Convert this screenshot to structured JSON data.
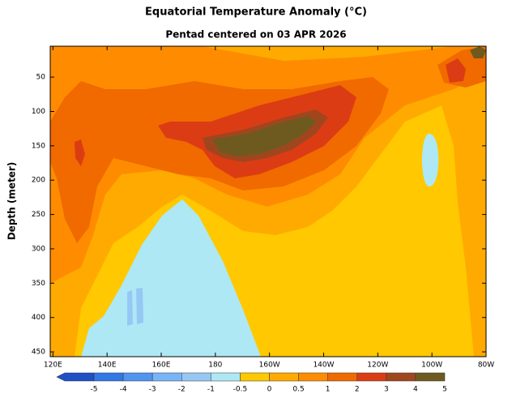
{
  "chart_data": {
    "type": "contour",
    "title": "Equatorial Temperature Anomaly (°C)",
    "subtitle": "Pentad centered on 03 APR 2026",
    "y_label": "Depth (meter)",
    "xlim": [
      119,
      280
    ],
    "xticks": [
      {
        "value": 120,
        "label": "120E"
      },
      {
        "value": 140,
        "label": "140E"
      },
      {
        "value": 160,
        "label": "160E"
      },
      {
        "value": 180,
        "label": "180"
      },
      {
        "value": 200,
        "label": "160W"
      },
      {
        "value": 220,
        "label": "140W"
      },
      {
        "value": 240,
        "label": "120W"
      },
      {
        "value": 260,
        "label": "100W"
      },
      {
        "value": 280,
        "label": "80W"
      }
    ],
    "ylim": [
      5,
      457
    ],
    "y_inverted": true,
    "yticks": [
      50,
      100,
      150,
      200,
      250,
      300,
      350,
      400,
      450
    ],
    "colorbar": {
      "levels": [
        -5,
        -4,
        -3,
        -2,
        -1,
        -0.5,
        0,
        0.5,
        1,
        2,
        3,
        4,
        5
      ],
      "colors": [
        "#1e50c8",
        "#3278e6",
        "#5096f0",
        "#78b4f8",
        "#96c8f5",
        "#aee8f5",
        "#ffc800",
        "#ffaa00",
        "#ff8c00",
        "#f06a00",
        "#dc3c14",
        "#a0461e",
        "#6e5a1e"
      ]
    }
  }
}
